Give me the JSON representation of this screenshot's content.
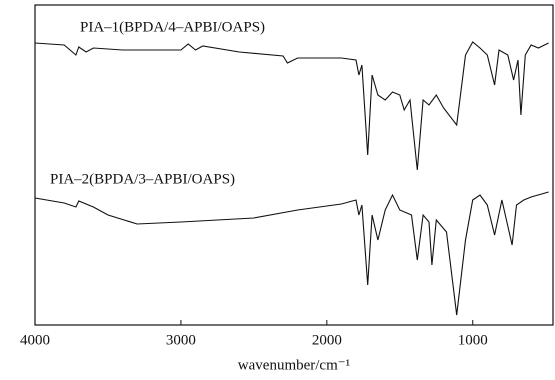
{
  "chart_data": {
    "type": "line",
    "x_label": "wavenumber/cm⁻¹",
    "xlim": [
      4000,
      450
    ],
    "xticks": [
      4000,
      3000,
      2000,
      1000
    ],
    "ylim": [
      0,
      320
    ],
    "series": [
      {
        "name": "PIA–1(BPDA/4–APBI/OAPS)",
        "color": "#111111",
        "x": [
          4000,
          3800,
          3720,
          3700,
          3650,
          3600,
          3400,
          3000,
          2950,
          2900,
          2850,
          2600,
          2300,
          2270,
          2200,
          1900,
          1800,
          1780,
          1760,
          1720,
          1690,
          1650,
          1600,
          1550,
          1500,
          1470,
          1430,
          1380,
          1340,
          1300,
          1250,
          1200,
          1110,
          1050,
          1000,
          950,
          900,
          850,
          820,
          760,
          720,
          690,
          670,
          640,
          600,
          550,
          480
        ],
        "values": [
          282,
          280,
          270,
          278,
          273,
          277,
          275,
          275,
          281,
          275,
          279,
          273,
          269,
          262,
          267,
          267,
          265,
          250,
          260,
          170,
          250,
          230,
          225,
          233,
          230,
          215,
          225,
          155,
          225,
          220,
          230,
          217,
          200,
          270,
          283,
          277,
          270,
          240,
          275,
          270,
          245,
          265,
          210,
          270,
          280,
          277,
          282
        ]
      },
      {
        "name": "PIA–2(BPDA/3–APBI/OAPS)",
        "color": "#111111",
        "x": [
          4000,
          3800,
          3720,
          3700,
          3600,
          3500,
          3300,
          3000,
          2500,
          2200,
          1900,
          1800,
          1780,
          1760,
          1720,
          1690,
          1650,
          1600,
          1550,
          1500,
          1420,
          1380,
          1340,
          1300,
          1280,
          1250,
          1180,
          1110,
          1050,
          1000,
          950,
          900,
          850,
          800,
          730,
          700,
          650,
          600,
          480
        ],
        "values": [
          127,
          122,
          118,
          124,
          118,
          110,
          101,
          103,
          107,
          115,
          121,
          125,
          110,
          120,
          40,
          110,
          85,
          115,
          130,
          115,
          110,
          65,
          110,
          103,
          60,
          105,
          93,
          10,
          85,
          125,
          130,
          120,
          90,
          125,
          80,
          120,
          125,
          128,
          133
        ]
      }
    ]
  }
}
